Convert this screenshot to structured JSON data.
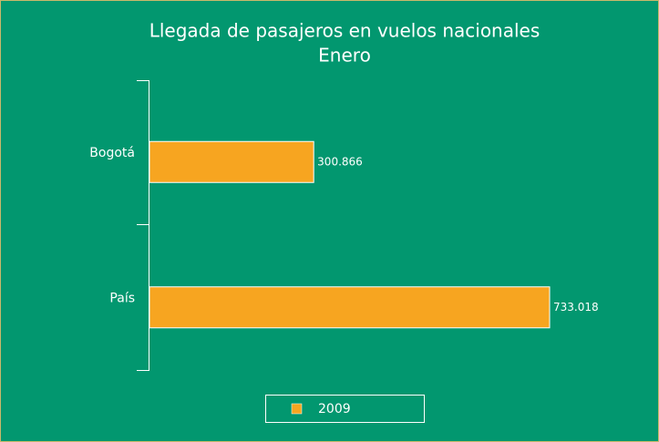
{
  "chart_data": {
    "type": "bar",
    "orientation": "horizontal",
    "title": "Llegada de pasajeros en vuelos nacionales",
    "subtitle": "Enero",
    "categories": [
      "Bogotá",
      "País"
    ],
    "series": [
      {
        "name": "2009",
        "color": "#f7a520",
        "values": [
          300866,
          733018
        ],
        "value_labels": [
          "300.866",
          "733.018"
        ]
      }
    ]
  }
}
